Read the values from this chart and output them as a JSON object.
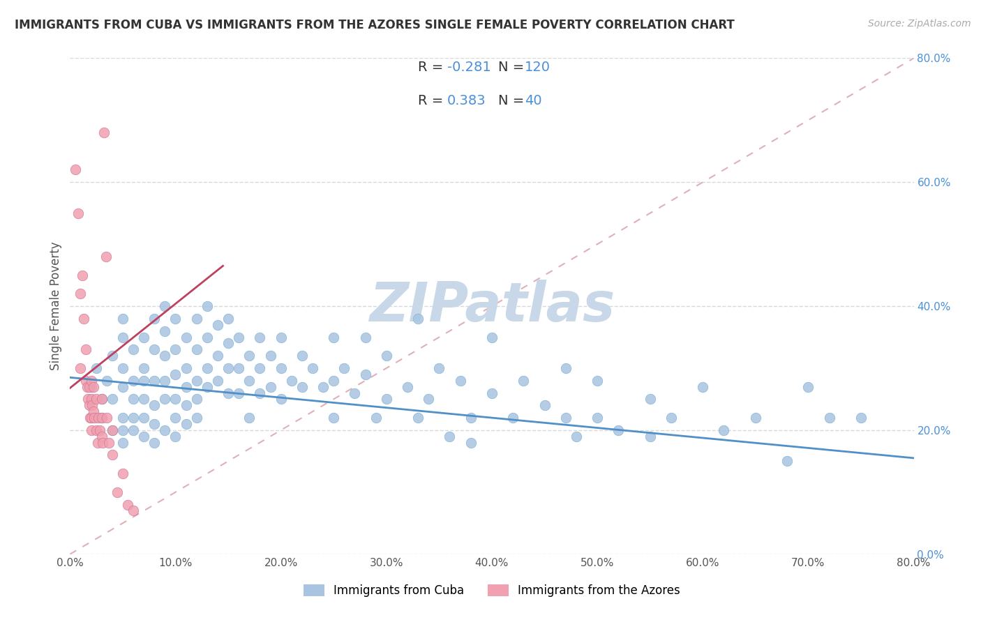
{
  "title": "IMMIGRANTS FROM CUBA VS IMMIGRANTS FROM THE AZORES SINGLE FEMALE POVERTY CORRELATION CHART",
  "source": "Source: ZipAtlas.com",
  "ylabel": "Single Female Poverty",
  "xlim": [
    0.0,
    0.8
  ],
  "ylim": [
    0.0,
    0.8
  ],
  "ytick_vals": [
    0.0,
    0.2,
    0.4,
    0.6,
    0.8
  ],
  "xtick_vals": [
    0.0,
    0.1,
    0.2,
    0.3,
    0.4,
    0.5,
    0.6,
    0.7,
    0.8
  ],
  "series": [
    {
      "name": "Immigrants from Cuba",
      "color": "#a8c4e0",
      "edge_color": "#7aafd4",
      "R_str": "-0.281",
      "N_str": "120",
      "trend_color": "#5090c8",
      "trend_x": [
        0.0,
        0.8
      ],
      "trend_y": [
        0.285,
        0.155
      ]
    },
    {
      "name": "Immigrants from the Azores",
      "color": "#f0a0b0",
      "edge_color": "#d07090",
      "R_str": "0.383",
      "N_str": "40",
      "trend_color": "#c04060",
      "trend_x": [
        0.0,
        0.145
      ],
      "trend_y": [
        0.268,
        0.465
      ]
    }
  ],
  "diag_color": "#e0b0b8",
  "cuba_points": [
    [
      0.02,
      0.27
    ],
    [
      0.025,
      0.3
    ],
    [
      0.03,
      0.25
    ],
    [
      0.03,
      0.22
    ],
    [
      0.035,
      0.28
    ],
    [
      0.04,
      0.32
    ],
    [
      0.04,
      0.25
    ],
    [
      0.04,
      0.2
    ],
    [
      0.05,
      0.38
    ],
    [
      0.05,
      0.35
    ],
    [
      0.05,
      0.3
    ],
    [
      0.05,
      0.27
    ],
    [
      0.05,
      0.22
    ],
    [
      0.05,
      0.2
    ],
    [
      0.05,
      0.18
    ],
    [
      0.06,
      0.33
    ],
    [
      0.06,
      0.28
    ],
    [
      0.06,
      0.25
    ],
    [
      0.06,
      0.22
    ],
    [
      0.06,
      0.2
    ],
    [
      0.07,
      0.35
    ],
    [
      0.07,
      0.3
    ],
    [
      0.07,
      0.28
    ],
    [
      0.07,
      0.25
    ],
    [
      0.07,
      0.22
    ],
    [
      0.07,
      0.19
    ],
    [
      0.08,
      0.38
    ],
    [
      0.08,
      0.33
    ],
    [
      0.08,
      0.28
    ],
    [
      0.08,
      0.24
    ],
    [
      0.08,
      0.21
    ],
    [
      0.08,
      0.18
    ],
    [
      0.09,
      0.4
    ],
    [
      0.09,
      0.36
    ],
    [
      0.09,
      0.32
    ],
    [
      0.09,
      0.28
    ],
    [
      0.09,
      0.25
    ],
    [
      0.09,
      0.2
    ],
    [
      0.1,
      0.38
    ],
    [
      0.1,
      0.33
    ],
    [
      0.1,
      0.29
    ],
    [
      0.1,
      0.25
    ],
    [
      0.1,
      0.22
    ],
    [
      0.1,
      0.19
    ],
    [
      0.11,
      0.35
    ],
    [
      0.11,
      0.3
    ],
    [
      0.11,
      0.27
    ],
    [
      0.11,
      0.24
    ],
    [
      0.11,
      0.21
    ],
    [
      0.12,
      0.38
    ],
    [
      0.12,
      0.33
    ],
    [
      0.12,
      0.28
    ],
    [
      0.12,
      0.25
    ],
    [
      0.12,
      0.22
    ],
    [
      0.13,
      0.4
    ],
    [
      0.13,
      0.35
    ],
    [
      0.13,
      0.3
    ],
    [
      0.13,
      0.27
    ],
    [
      0.14,
      0.37
    ],
    [
      0.14,
      0.32
    ],
    [
      0.14,
      0.28
    ],
    [
      0.15,
      0.38
    ],
    [
      0.15,
      0.34
    ],
    [
      0.15,
      0.3
    ],
    [
      0.15,
      0.26
    ],
    [
      0.16,
      0.35
    ],
    [
      0.16,
      0.3
    ],
    [
      0.16,
      0.26
    ],
    [
      0.17,
      0.32
    ],
    [
      0.17,
      0.28
    ],
    [
      0.17,
      0.22
    ],
    [
      0.18,
      0.35
    ],
    [
      0.18,
      0.3
    ],
    [
      0.18,
      0.26
    ],
    [
      0.19,
      0.32
    ],
    [
      0.19,
      0.27
    ],
    [
      0.2,
      0.35
    ],
    [
      0.2,
      0.3
    ],
    [
      0.2,
      0.25
    ],
    [
      0.21,
      0.28
    ],
    [
      0.22,
      0.32
    ],
    [
      0.22,
      0.27
    ],
    [
      0.23,
      0.3
    ],
    [
      0.24,
      0.27
    ],
    [
      0.25,
      0.35
    ],
    [
      0.25,
      0.28
    ],
    [
      0.25,
      0.22
    ],
    [
      0.26,
      0.3
    ],
    [
      0.27,
      0.26
    ],
    [
      0.28,
      0.35
    ],
    [
      0.28,
      0.29
    ],
    [
      0.29,
      0.22
    ],
    [
      0.3,
      0.32
    ],
    [
      0.3,
      0.25
    ],
    [
      0.32,
      0.27
    ],
    [
      0.33,
      0.38
    ],
    [
      0.33,
      0.22
    ],
    [
      0.34,
      0.25
    ],
    [
      0.35,
      0.3
    ],
    [
      0.36,
      0.19
    ],
    [
      0.37,
      0.28
    ],
    [
      0.38,
      0.22
    ],
    [
      0.38,
      0.18
    ],
    [
      0.4,
      0.35
    ],
    [
      0.4,
      0.26
    ],
    [
      0.42,
      0.22
    ],
    [
      0.43,
      0.28
    ],
    [
      0.45,
      0.24
    ],
    [
      0.47,
      0.3
    ],
    [
      0.47,
      0.22
    ],
    [
      0.48,
      0.19
    ],
    [
      0.5,
      0.28
    ],
    [
      0.5,
      0.22
    ],
    [
      0.52,
      0.2
    ],
    [
      0.55,
      0.25
    ],
    [
      0.55,
      0.19
    ],
    [
      0.57,
      0.22
    ],
    [
      0.6,
      0.27
    ],
    [
      0.62,
      0.2
    ],
    [
      0.65,
      0.22
    ],
    [
      0.68,
      0.15
    ],
    [
      0.7,
      0.27
    ],
    [
      0.72,
      0.22
    ],
    [
      0.75,
      0.22
    ]
  ],
  "azores_points": [
    [
      0.005,
      0.62
    ],
    [
      0.008,
      0.55
    ],
    [
      0.01,
      0.42
    ],
    [
      0.01,
      0.3
    ],
    [
      0.012,
      0.45
    ],
    [
      0.013,
      0.38
    ],
    [
      0.015,
      0.33
    ],
    [
      0.015,
      0.28
    ],
    [
      0.016,
      0.27
    ],
    [
      0.017,
      0.25
    ],
    [
      0.018,
      0.27
    ],
    [
      0.018,
      0.24
    ],
    [
      0.019,
      0.22
    ],
    [
      0.02,
      0.28
    ],
    [
      0.02,
      0.25
    ],
    [
      0.02,
      0.22
    ],
    [
      0.02,
      0.2
    ],
    [
      0.021,
      0.24
    ],
    [
      0.022,
      0.27
    ],
    [
      0.022,
      0.23
    ],
    [
      0.023,
      0.22
    ],
    [
      0.025,
      0.25
    ],
    [
      0.025,
      0.2
    ],
    [
      0.026,
      0.18
    ],
    [
      0.027,
      0.22
    ],
    [
      0.028,
      0.2
    ],
    [
      0.03,
      0.25
    ],
    [
      0.03,
      0.22
    ],
    [
      0.03,
      0.19
    ],
    [
      0.031,
      0.18
    ],
    [
      0.032,
      0.68
    ],
    [
      0.034,
      0.48
    ],
    [
      0.035,
      0.22
    ],
    [
      0.037,
      0.18
    ],
    [
      0.04,
      0.2
    ],
    [
      0.04,
      0.16
    ],
    [
      0.045,
      0.1
    ],
    [
      0.05,
      0.13
    ],
    [
      0.055,
      0.08
    ],
    [
      0.06,
      0.07
    ]
  ],
  "watermark_text": "ZIPatlas",
  "watermark_color": "#c8d8e8",
  "bg_color": "#ffffff",
  "grid_color": "#d8d8d8",
  "legend_R_color": "#4a90d9",
  "legend_N_color": "#4a90d9",
  "title_fontsize": 12,
  "source_fontsize": 10,
  "tick_fontsize": 11,
  "ylabel_fontsize": 12
}
